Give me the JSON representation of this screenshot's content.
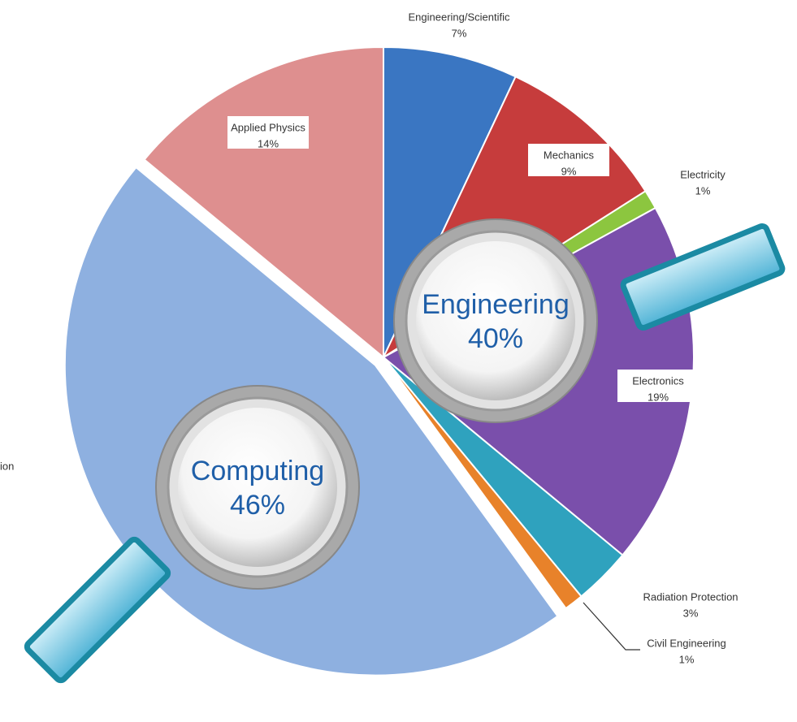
{
  "chart_data": {
    "type": "pie",
    "categories": [
      "Engineering/Scientific",
      "Mechanics",
      "Electricity",
      "Electronics",
      "Radiation Protection",
      "Civil Engineering",
      "ion",
      "Applied Physics"
    ],
    "values": [
      7,
      9,
      1,
      19,
      3,
      1,
      46,
      14
    ],
    "value_labels": [
      "7%",
      "9%",
      "1%",
      "19%",
      "3%",
      "1%",
      null,
      "14%"
    ],
    "colors": [
      "#3a76c2",
      "#c63c3c",
      "#8cc63f",
      "#7a4fab",
      "#2fa2be",
      "#e8822a",
      "#8eb0e0",
      "#de8f8f"
    ],
    "groups": [
      {
        "name": "Engineering",
        "value": 40,
        "value_label": "40%"
      },
      {
        "name": "Computing",
        "value": 46,
        "value_label": "46%"
      }
    ]
  }
}
